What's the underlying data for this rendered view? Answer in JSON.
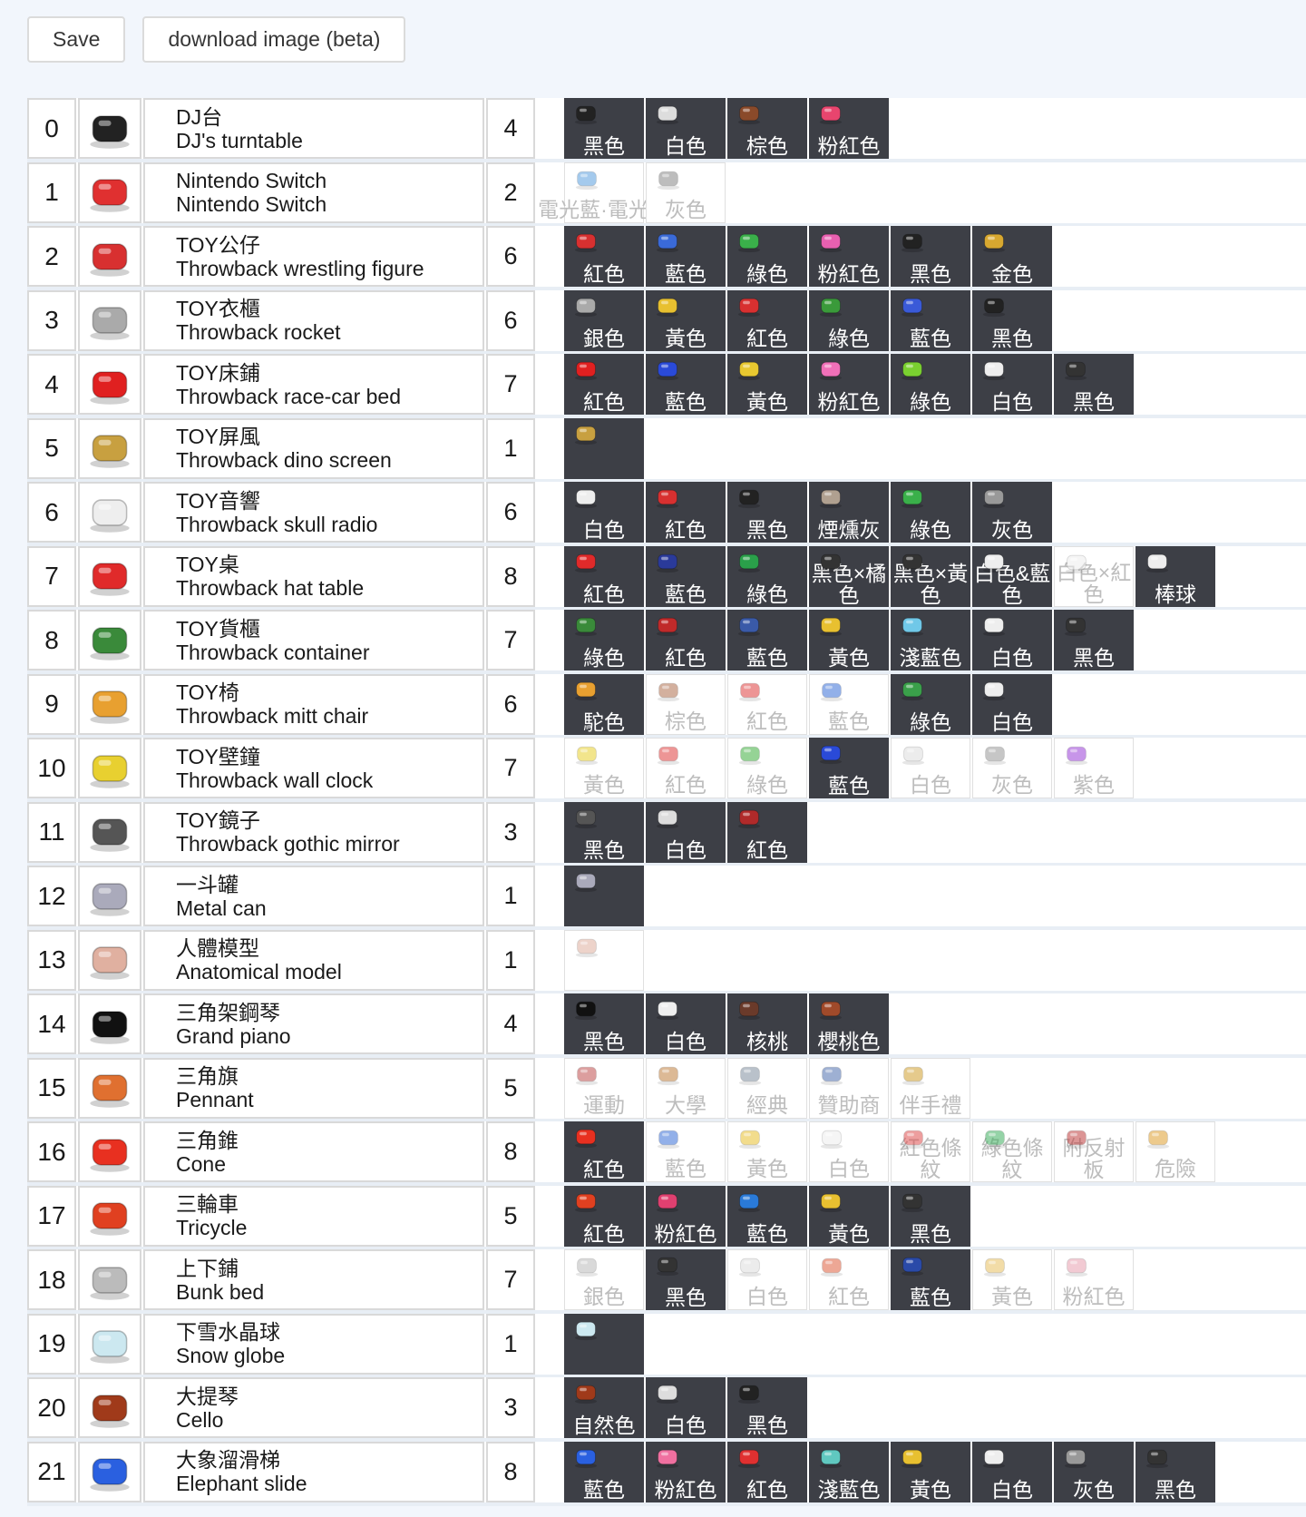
{
  "toolbar": {
    "save_label": "Save",
    "download_label": "download image (beta)"
  },
  "rows": [
    {
      "idx": "0",
      "zh": "DJ台",
      "en": "DJ's turntable",
      "count": "4",
      "icon": "turntable-icon",
      "color": "#222",
      "variants": [
        {
          "label": "黑色",
          "dark": true,
          "c": "#222"
        },
        {
          "label": "白色",
          "dark": true,
          "c": "#ddd"
        },
        {
          "label": "棕色",
          "dark": true,
          "c": "#8a4a2a"
        },
        {
          "label": "粉紅色",
          "dark": true,
          "c": "#e8456e"
        }
      ]
    },
    {
      "idx": "1",
      "zh": "Nintendo Switch",
      "en": "Nintendo Switch",
      "count": "2",
      "icon": "switch-icon",
      "color": "#e03030",
      "variants": [
        {
          "label": "電光藍·電光紅",
          "dark": false,
          "c": "#5aa0e0"
        },
        {
          "label": "灰色",
          "dark": false,
          "c": "#888"
        }
      ]
    },
    {
      "idx": "2",
      "zh": "TOY公仔",
      "en": "Throwback wrestling figure",
      "count": "6",
      "icon": "wrestler-icon",
      "color": "#d83030",
      "variants": [
        {
          "label": "紅色",
          "dark": true,
          "c": "#d83030"
        },
        {
          "label": "藍色",
          "dark": true,
          "c": "#3a6ad8"
        },
        {
          "label": "綠色",
          "dark": true,
          "c": "#3ab04a"
        },
        {
          "label": "粉紅色",
          "dark": true,
          "c": "#e860b0"
        },
        {
          "label": "黑色",
          "dark": true,
          "c": "#222"
        },
        {
          "label": "金色",
          "dark": true,
          "c": "#d8a830"
        }
      ]
    },
    {
      "idx": "3",
      "zh": "TOY衣櫃",
      "en": "Throwback rocket",
      "count": "6",
      "icon": "rocket-icon",
      "color": "#aaa",
      "variants": [
        {
          "label": "銀色",
          "dark": true,
          "c": "#aaa"
        },
        {
          "label": "黃色",
          "dark": true,
          "c": "#e8c030"
        },
        {
          "label": "紅色",
          "dark": true,
          "c": "#d83030"
        },
        {
          "label": "綠色",
          "dark": true,
          "c": "#3a9a3a"
        },
        {
          "label": "藍色",
          "dark": true,
          "c": "#3a5ad8"
        },
        {
          "label": "黑色",
          "dark": true,
          "c": "#222"
        }
      ]
    },
    {
      "idx": "4",
      "zh": "TOY床鋪",
      "en": "Throwback race-car bed",
      "count": "7",
      "icon": "racecar-bed-icon",
      "color": "#e02020",
      "variants": [
        {
          "label": "紅色",
          "dark": true,
          "c": "#e02020"
        },
        {
          "label": "藍色",
          "dark": true,
          "c": "#2a4ad8"
        },
        {
          "label": "黃色",
          "dark": true,
          "c": "#e8c830"
        },
        {
          "label": "粉紅色",
          "dark": true,
          "c": "#f070b8"
        },
        {
          "label": "綠色",
          "dark": true,
          "c": "#7ad030"
        },
        {
          "label": "白色",
          "dark": true,
          "c": "#eee"
        },
        {
          "label": "黑色",
          "dark": true,
          "c": "#333"
        }
      ]
    },
    {
      "idx": "5",
      "zh": "TOY屏風",
      "en": "Throwback dino screen",
      "count": "1",
      "icon": "dino-icon",
      "color": "#c8a040",
      "variants": [
        {
          "label": "",
          "dark": true,
          "c": "#c8a040"
        }
      ]
    },
    {
      "idx": "6",
      "zh": "TOY音響",
      "en": "Throwback skull radio",
      "count": "6",
      "icon": "skull-radio-icon",
      "color": "#eee",
      "variants": [
        {
          "label": "白色",
          "dark": true,
          "c": "#eee"
        },
        {
          "label": "紅色",
          "dark": true,
          "c": "#d83030"
        },
        {
          "label": "黑色",
          "dark": true,
          "c": "#222"
        },
        {
          "label": "煙燻灰",
          "dark": true,
          "c": "#b0a090"
        },
        {
          "label": "綠色",
          "dark": true,
          "c": "#3ab04a"
        },
        {
          "label": "灰色",
          "dark": true,
          "c": "#999"
        }
      ]
    },
    {
      "idx": "7",
      "zh": "TOY桌",
      "en": "Throwback hat table",
      "count": "8",
      "icon": "hat-table-icon",
      "color": "#e02a2a",
      "variants": [
        {
          "label": "紅色",
          "dark": true,
          "c": "#e02a2a"
        },
        {
          "label": "藍色",
          "dark": true,
          "c": "#2a3a9a"
        },
        {
          "label": "綠色",
          "dark": true,
          "c": "#2aa04a"
        },
        {
          "label": "黑色×橘色",
          "dark": true,
          "c": "#333",
          "wrap": true
        },
        {
          "label": "黑色×黃色",
          "dark": true,
          "c": "#333",
          "wrap": true
        },
        {
          "label": "白色&藍色",
          "dark": true,
          "c": "#eee",
          "wrap": true
        },
        {
          "label": "白色×紅色",
          "dark": false,
          "c": "#eee",
          "wrap": true
        },
        {
          "label": "棒球",
          "dark": true,
          "c": "#eee"
        }
      ]
    },
    {
      "idx": "8",
      "zh": "TOY貨櫃",
      "en": "Throwback container",
      "count": "7",
      "icon": "container-icon",
      "color": "#3a8a3a",
      "variants": [
        {
          "label": "綠色",
          "dark": true,
          "c": "#3a8a3a"
        },
        {
          "label": "紅色",
          "dark": true,
          "c": "#c02a2a"
        },
        {
          "label": "藍色",
          "dark": true,
          "c": "#3a5aa8"
        },
        {
          "label": "黃色",
          "dark": true,
          "c": "#e8c030"
        },
        {
          "label": "淺藍色",
          "dark": true,
          "c": "#70c8e8"
        },
        {
          "label": "白色",
          "dark": true,
          "c": "#eee"
        },
        {
          "label": "黑色",
          "dark": true,
          "c": "#333"
        }
      ]
    },
    {
      "idx": "9",
      "zh": "TOY椅",
      "en": "Throwback mitt chair",
      "count": "6",
      "icon": "mitt-chair-icon",
      "color": "#e8a030",
      "variants": [
        {
          "label": "駝色",
          "dark": true,
          "c": "#e8a030"
        },
        {
          "label": "棕色",
          "dark": false,
          "c": "#b07050"
        },
        {
          "label": "紅色",
          "dark": false,
          "c": "#e04040"
        },
        {
          "label": "藍色",
          "dark": false,
          "c": "#3a70d8"
        },
        {
          "label": "綠色",
          "dark": true,
          "c": "#3aa04a"
        },
        {
          "label": "白色",
          "dark": true,
          "c": "#eee"
        }
      ]
    },
    {
      "idx": "10",
      "zh": "TOY壁鐘",
      "en": "Throwback wall clock",
      "count": "7",
      "icon": "wall-clock-icon",
      "color": "#e8d030",
      "variants": [
        {
          "label": "黃色",
          "dark": false,
          "c": "#e8d030"
        },
        {
          "label": "紅色",
          "dark": false,
          "c": "#e04040"
        },
        {
          "label": "綠色",
          "dark": false,
          "c": "#40b040"
        },
        {
          "label": "藍色",
          "dark": true,
          "c": "#2a4ad8"
        },
        {
          "label": "白色",
          "dark": false,
          "c": "#ddd"
        },
        {
          "label": "灰色",
          "dark": false,
          "c": "#999"
        },
        {
          "label": "紫色",
          "dark": false,
          "c": "#9a40d8"
        }
      ]
    },
    {
      "idx": "11",
      "zh": "TOY鏡子",
      "en": "Throwback gothic mirror",
      "count": "3",
      "icon": "gothic-mirror-icon",
      "color": "#555",
      "variants": [
        {
          "label": "黑色",
          "dark": true,
          "c": "#555"
        },
        {
          "label": "白色",
          "dark": true,
          "c": "#ddd"
        },
        {
          "label": "紅色",
          "dark": true,
          "c": "#b02a2a"
        }
      ]
    },
    {
      "idx": "12",
      "zh": "一斗罐",
      "en": "Metal can",
      "count": "1",
      "icon": "metal-can-icon",
      "color": "#aab",
      "variants": [
        {
          "label": "",
          "dark": true,
          "c": "#aab"
        }
      ]
    },
    {
      "idx": "13",
      "zh": "人體模型",
      "en": "Anatomical model",
      "count": "1",
      "icon": "anatomical-model-icon",
      "color": "#e0b0a0",
      "variants": [
        {
          "label": "",
          "dark": false,
          "c": "#e0b0a0"
        }
      ]
    },
    {
      "idx": "14",
      "zh": "三角架鋼琴",
      "en": "Grand piano",
      "count": "4",
      "icon": "grand-piano-icon",
      "color": "#111",
      "variants": [
        {
          "label": "黑色",
          "dark": true,
          "c": "#111"
        },
        {
          "label": "白色",
          "dark": true,
          "c": "#eee"
        },
        {
          "label": "核桃",
          "dark": true,
          "c": "#6a3a2a"
        },
        {
          "label": "櫻桃色",
          "dark": true,
          "c": "#a04a2a"
        }
      ]
    },
    {
      "idx": "15",
      "zh": "三角旗",
      "en": "Pennant",
      "count": "5",
      "icon": "pennant-icon",
      "color": "#e07030",
      "variants": [
        {
          "label": "運動",
          "dark": false,
          "c": "#c05050"
        },
        {
          "label": "大學",
          "dark": false,
          "c": "#c08040"
        },
        {
          "label": "經典",
          "dark": false,
          "c": "#8090a0"
        },
        {
          "label": "贊助商",
          "dark": false,
          "c": "#5070b0"
        },
        {
          "label": "伴手禮",
          "dark": false,
          "c": "#d0a030"
        }
      ]
    },
    {
      "idx": "16",
      "zh": "三角錐",
      "en": "Cone",
      "count": "8",
      "icon": "cone-icon",
      "color": "#e83020",
      "variants": [
        {
          "label": "紅色",
          "dark": true,
          "c": "#e83020"
        },
        {
          "label": "藍色",
          "dark": false,
          "c": "#3a70d8"
        },
        {
          "label": "黃色",
          "dark": false,
          "c": "#e8c030"
        },
        {
          "label": "白色",
          "dark": false,
          "c": "#eee"
        },
        {
          "label": "紅色條紋",
          "dark": false,
          "c": "#e05050",
          "wrap": true
        },
        {
          "label": "綠色條紋",
          "dark": false,
          "c": "#40b060",
          "wrap": true
        },
        {
          "label": "附反射板",
          "dark": false,
          "c": "#c04040",
          "wrap": true
        },
        {
          "label": "危險",
          "dark": false,
          "c": "#e0a030"
        }
      ]
    },
    {
      "idx": "17",
      "zh": "三輪車",
      "en": "Tricycle",
      "count": "5",
      "icon": "tricycle-icon",
      "color": "#e04020",
      "variants": [
        {
          "label": "紅色",
          "dark": true,
          "c": "#e04020"
        },
        {
          "label": "粉紅色",
          "dark": true,
          "c": "#e04070"
        },
        {
          "label": "藍色",
          "dark": true,
          "c": "#2a7ad8"
        },
        {
          "label": "黃色",
          "dark": true,
          "c": "#e8c030"
        },
        {
          "label": "黑色",
          "dark": true,
          "c": "#333"
        }
      ]
    },
    {
      "idx": "18",
      "zh": "上下鋪",
      "en": "Bunk bed",
      "count": "7",
      "icon": "bunk-bed-icon",
      "color": "#bbb",
      "variants": [
        {
          "label": "銀色",
          "dark": false,
          "c": "#bbb"
        },
        {
          "label": "黑色",
          "dark": true,
          "c": "#333"
        },
        {
          "label": "白色",
          "dark": false,
          "c": "#ddd"
        },
        {
          "label": "紅色",
          "dark": false,
          "c": "#e06040"
        },
        {
          "label": "藍色",
          "dark": true,
          "c": "#2a4aa8"
        },
        {
          "label": "黃色",
          "dark": false,
          "c": "#e8c060"
        },
        {
          "label": "粉紅色",
          "dark": false,
          "c": "#e8a0b0"
        }
      ]
    },
    {
      "idx": "19",
      "zh": "下雪水晶球",
      "en": "Snow globe",
      "count": "1",
      "icon": "snow-globe-icon",
      "color": "#cce8f0",
      "variants": [
        {
          "label": "",
          "dark": true,
          "c": "#cce8f0"
        }
      ]
    },
    {
      "idx": "20",
      "zh": "大提琴",
      "en": "Cello",
      "count": "3",
      "icon": "cello-icon",
      "color": "#a03a1a",
      "variants": [
        {
          "label": "自然色",
          "dark": true,
          "c": "#a03a1a"
        },
        {
          "label": "白色",
          "dark": true,
          "c": "#ddd"
        },
        {
          "label": "黑色",
          "dark": true,
          "c": "#222"
        }
      ]
    },
    {
      "idx": "21",
      "zh": "大象溜滑梯",
      "en": "Elephant slide",
      "count": "8",
      "icon": "elephant-slide-icon",
      "color": "#2a60e0",
      "variants": [
        {
          "label": "藍色",
          "dark": true,
          "c": "#2a60e0"
        },
        {
          "label": "粉紅色",
          "dark": true,
          "c": "#f070a0"
        },
        {
          "label": "紅色",
          "dark": true,
          "c": "#e03030"
        },
        {
          "label": "淺藍色",
          "dark": true,
          "c": "#60c8c0"
        },
        {
          "label": "黃色",
          "dark": true,
          "c": "#e8c030"
        },
        {
          "label": "白色",
          "dark": true,
          "c": "#eee"
        },
        {
          "label": "灰色",
          "dark": true,
          "c": "#999"
        },
        {
          "label": "黑色",
          "dark": true,
          "c": "#333"
        }
      ]
    }
  ]
}
